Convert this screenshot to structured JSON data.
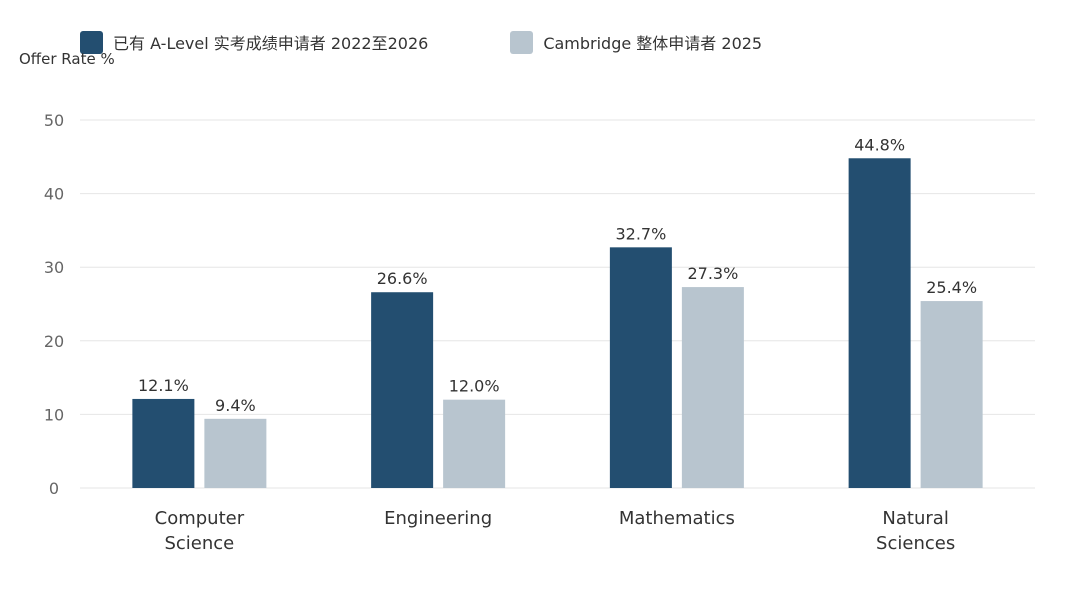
{
  "chart_data": {
    "type": "bar",
    "ylabel": "Offer Rate %",
    "ylim": [
      0,
      50
    ],
    "yticks": [
      0,
      10,
      20,
      30,
      40,
      50
    ],
    "grid": true,
    "legend_position": "top-left",
    "categories": [
      [
        "Computer",
        "Science"
      ],
      [
        "Engineering"
      ],
      [
        "Mathematics"
      ],
      [
        "Natural",
        "Sciences"
      ]
    ],
    "series": [
      {
        "name": "已有 A-Level 实考成绩申请者 2022至2026",
        "color": "#234e70",
        "values": [
          12.1,
          26.6,
          32.7,
          44.8
        ],
        "labels": [
          "12.1%",
          "26.6%",
          "32.7%",
          "44.8%"
        ]
      },
      {
        "name": "Cambridge 整体申请者 2025",
        "color": "#b8c5cf",
        "values": [
          9.4,
          12.0,
          27.3,
          25.4
        ],
        "labels": [
          "9.4%",
          "12.0%",
          "27.3%",
          "25.4%"
        ]
      }
    ],
    "colors": {
      "grid": "#e6e6e6",
      "axis_text": "#666666",
      "label_text": "#333333"
    }
  }
}
